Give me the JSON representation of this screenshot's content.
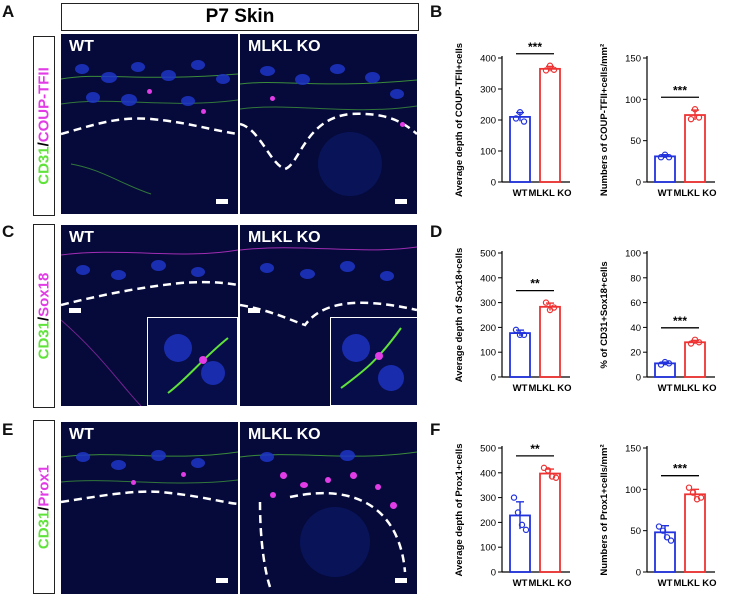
{
  "panels": {
    "A": "A",
    "B": "B",
    "C": "C",
    "D": "D",
    "E": "E",
    "F": "F"
  },
  "header_title": "P7 Skin",
  "rows": [
    {
      "marker_left": "CD31",
      "slash": "/",
      "marker_right": "COUP-TFII",
      "wt": "WT",
      "ko": "MLKL KO"
    },
    {
      "marker_left": "CD31",
      "slash": "/",
      "marker_right": "Sox18",
      "wt": "WT",
      "ko": "MLKL KO"
    },
    {
      "marker_left": "CD31",
      "slash": "/",
      "marker_right": "Prox1",
      "wt": "WT",
      "ko": "MLKL KO"
    }
  ],
  "colors": {
    "wt": "#2233dd",
    "ko": "#ee3333",
    "green": "#5fe33a",
    "magenta": "#e23ce6",
    "tissue_bg": "#050a3a",
    "nuclei": "#1e35c8"
  },
  "chart_data": [
    {
      "panel": "B",
      "type": "bar",
      "categories": [
        "WT",
        "MLKL KO"
      ],
      "values": [
        210,
        365
      ],
      "points": [
        [
          205,
          225,
          195
        ],
        [
          360,
          375,
          362
        ]
      ],
      "errors": [
        14,
        8
      ],
      "ylabel": "Average depth of COUP-TFII+cells",
      "ylim": [
        0,
        400
      ],
      "yticks": [
        0,
        100,
        200,
        300,
        400
      ],
      "significance": "***"
    },
    {
      "panel": "B",
      "type": "bar",
      "categories": [
        "WT",
        "MLKL KO"
      ],
      "values": [
        31,
        81
      ],
      "points": [
        [
          30,
          33,
          30
        ],
        [
          76,
          88,
          78
        ]
      ],
      "errors": [
        2,
        6
      ],
      "ylabel": "Numbers of COUP-TFII+cells/mm²",
      "ylim": [
        0,
        150
      ],
      "yticks": [
        0,
        50,
        100,
        150
      ],
      "significance": "***"
    },
    {
      "panel": "D",
      "type": "bar",
      "categories": [
        "WT",
        "MLKL KO"
      ],
      "values": [
        177,
        283
      ],
      "points": [
        [
          190,
          170,
          170
        ],
        [
          300,
          270,
          280
        ]
      ],
      "errors": [
        12,
        15
      ],
      "ylabel": "Average depth of Sox18+cells",
      "ylim": [
        0,
        500
      ],
      "yticks": [
        0,
        100,
        200,
        300,
        400,
        500
      ],
      "significance": "**"
    },
    {
      "panel": "D",
      "type": "bar",
      "categories": [
        "WT",
        "MLKL KO"
      ],
      "values": [
        11,
        28
      ],
      "points": [
        [
          10,
          12,
          11
        ],
        [
          27,
          30,
          28
        ]
      ],
      "errors": [
        1,
        1.5
      ],
      "ylabel": "% of CD31+Sox18+cells",
      "ylim": [
        0,
        100
      ],
      "yticks": [
        0,
        20,
        40,
        60,
        80,
        100
      ],
      "significance": "***"
    },
    {
      "panel": "F",
      "type": "bar",
      "categories": [
        "WT",
        "MLKL KO"
      ],
      "values": [
        228,
        397
      ],
      "points": [
        [
          300,
          240,
          190,
          170
        ],
        [
          420,
          410,
          385,
          380
        ]
      ],
      "errors": [
        55,
        18
      ],
      "ylabel": "Average depth of Prox1+cells",
      "ylim": [
        0,
        500
      ],
      "yticks": [
        0,
        100,
        200,
        300,
        400,
        500
      ],
      "significance": "**"
    },
    {
      "panel": "F",
      "type": "bar",
      "categories": [
        "WT",
        "MLKL KO"
      ],
      "values": [
        48,
        94
      ],
      "points": [
        [
          55,
          50,
          42,
          38
        ],
        [
          102,
          96,
          88,
          90
        ]
      ],
      "errors": [
        8,
        6
      ],
      "ylabel": "Numbers of Prox1+cells/mm²",
      "ylim": [
        0,
        150
      ],
      "yticks": [
        0,
        50,
        100,
        150
      ],
      "significance": "***"
    }
  ]
}
